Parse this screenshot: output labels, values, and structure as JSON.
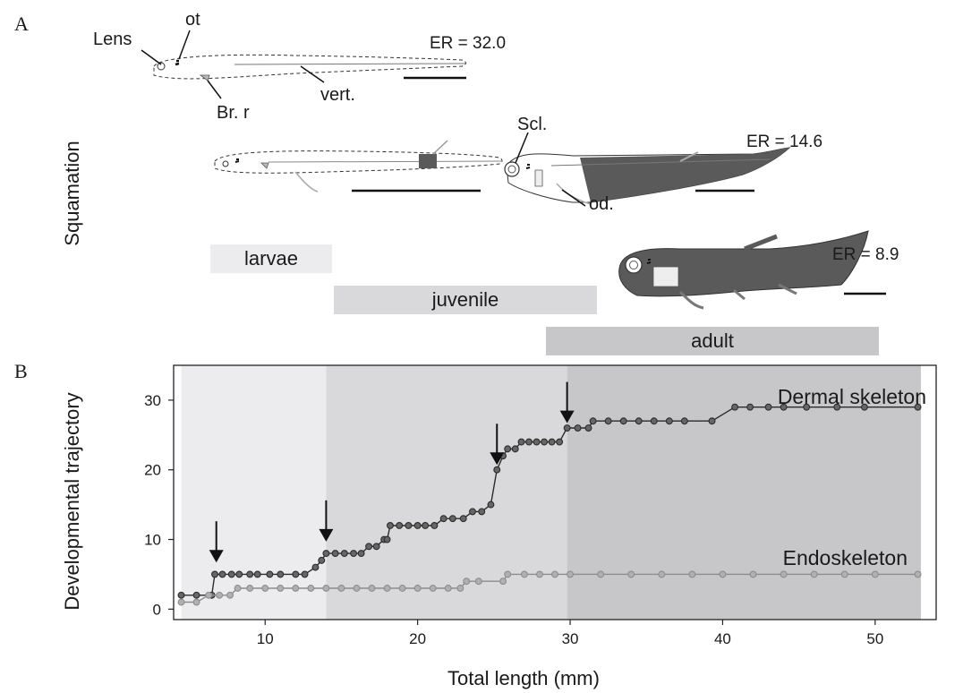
{
  "panel_a": {
    "letter": "A",
    "side_label": "Squamation",
    "labels": {
      "lens": "Lens",
      "ot": "ot",
      "br_r": "Br. r",
      "vert": "vert.",
      "scl": "Scl.",
      "od": "od."
    },
    "er_values": [
      "ER = 32.0",
      "ER = 14.6",
      "ER = 8.9"
    ],
    "stages": [
      "larvae",
      "juvenile",
      "adult"
    ]
  },
  "panel_b": {
    "letter": "B"
  },
  "colors": {
    "dermal": "#2b2b2b",
    "endo": "#8c8c8c",
    "larvae_band": "#ececef",
    "juvenile_band": "#d9d9db",
    "adult_band": "#c7c7c9",
    "fish_fill": "#5a5a5a"
  },
  "chart_data": {
    "type": "line",
    "xlabel": "Total length (mm)",
    "ylabel": "Developmental trajectory",
    "xlim": [
      4,
      54
    ],
    "ylim": [
      -1.5,
      35
    ],
    "xticks": [
      10,
      20,
      30,
      40,
      50
    ],
    "yticks": [
      0,
      10,
      20,
      30
    ],
    "stage_bands": [
      {
        "name": "larvae",
        "from": 4.5,
        "to": 14
      },
      {
        "name": "juvenile",
        "from": 14,
        "to": 29.8
      },
      {
        "name": "adult",
        "from": 29.8,
        "to": 53
      }
    ],
    "arrows_at_x": [
      6.8,
      14,
      25.2,
      29.8
    ],
    "series": [
      {
        "name": "Dermal skeleton",
        "points": [
          [
            4.5,
            2
          ],
          [
            5.5,
            2
          ],
          [
            6.5,
            2
          ],
          [
            6.7,
            5
          ],
          [
            7.2,
            5
          ],
          [
            7.8,
            5
          ],
          [
            8.3,
            5
          ],
          [
            9,
            5
          ],
          [
            9.5,
            5
          ],
          [
            10.3,
            5
          ],
          [
            11,
            5
          ],
          [
            12,
            5
          ],
          [
            12.6,
            5
          ],
          [
            13.3,
            6
          ],
          [
            13.7,
            7
          ],
          [
            14,
            8
          ],
          [
            14.6,
            8
          ],
          [
            15.2,
            8
          ],
          [
            15.8,
            8
          ],
          [
            16.3,
            8
          ],
          [
            16.8,
            9
          ],
          [
            17.3,
            9
          ],
          [
            17.8,
            10
          ],
          [
            18,
            10
          ],
          [
            18.2,
            12
          ],
          [
            18.8,
            12
          ],
          [
            19.4,
            12
          ],
          [
            20,
            12
          ],
          [
            20.5,
            12
          ],
          [
            21.1,
            12
          ],
          [
            21.7,
            13
          ],
          [
            22.3,
            13
          ],
          [
            23,
            13
          ],
          [
            23.6,
            14
          ],
          [
            24.2,
            14
          ],
          [
            24.8,
            15
          ],
          [
            25.2,
            20
          ],
          [
            25.6,
            22
          ],
          [
            25.9,
            23
          ],
          [
            26.4,
            23
          ],
          [
            26.8,
            24
          ],
          [
            27.3,
            24
          ],
          [
            27.8,
            24
          ],
          [
            28.3,
            24
          ],
          [
            28.8,
            24
          ],
          [
            29.3,
            24
          ],
          [
            29.8,
            26
          ],
          [
            30.5,
            26
          ],
          [
            31.2,
            26
          ],
          [
            31.5,
            27
          ],
          [
            32.5,
            27
          ],
          [
            33.5,
            27
          ],
          [
            34.5,
            27
          ],
          [
            35.5,
            27
          ],
          [
            36.5,
            27
          ],
          [
            37.5,
            27
          ],
          [
            39.3,
            27
          ],
          [
            40.8,
            29
          ],
          [
            41.8,
            29
          ],
          [
            43,
            29
          ],
          [
            44,
            29
          ],
          [
            45.5,
            29
          ],
          [
            47.5,
            29
          ],
          [
            49.3,
            29
          ],
          [
            52.8,
            29
          ]
        ]
      },
      {
        "name": "Endoskeleton",
        "points": [
          [
            4.5,
            1
          ],
          [
            5.5,
            1
          ],
          [
            6.3,
            2
          ],
          [
            7,
            2
          ],
          [
            7.7,
            2
          ],
          [
            8.2,
            3
          ],
          [
            9,
            3
          ],
          [
            10,
            3
          ],
          [
            11,
            3
          ],
          [
            12,
            3
          ],
          [
            13,
            3
          ],
          [
            14,
            3
          ],
          [
            15,
            3
          ],
          [
            16,
            3
          ],
          [
            17,
            3
          ],
          [
            18,
            3
          ],
          [
            19,
            3
          ],
          [
            20,
            3
          ],
          [
            21,
            3
          ],
          [
            22,
            3
          ],
          [
            22.8,
            3
          ],
          [
            23.2,
            4
          ],
          [
            24,
            4
          ],
          [
            25.6,
            4
          ],
          [
            25.9,
            5
          ],
          [
            27,
            5
          ],
          [
            28,
            5
          ],
          [
            29,
            5
          ],
          [
            30,
            5
          ],
          [
            32,
            5
          ],
          [
            34,
            5
          ],
          [
            36,
            5
          ],
          [
            38,
            5
          ],
          [
            40,
            5
          ],
          [
            42,
            5
          ],
          [
            44,
            5
          ],
          [
            46,
            5
          ],
          [
            48,
            5
          ],
          [
            50,
            5
          ],
          [
            52.8,
            5
          ]
        ]
      }
    ]
  }
}
